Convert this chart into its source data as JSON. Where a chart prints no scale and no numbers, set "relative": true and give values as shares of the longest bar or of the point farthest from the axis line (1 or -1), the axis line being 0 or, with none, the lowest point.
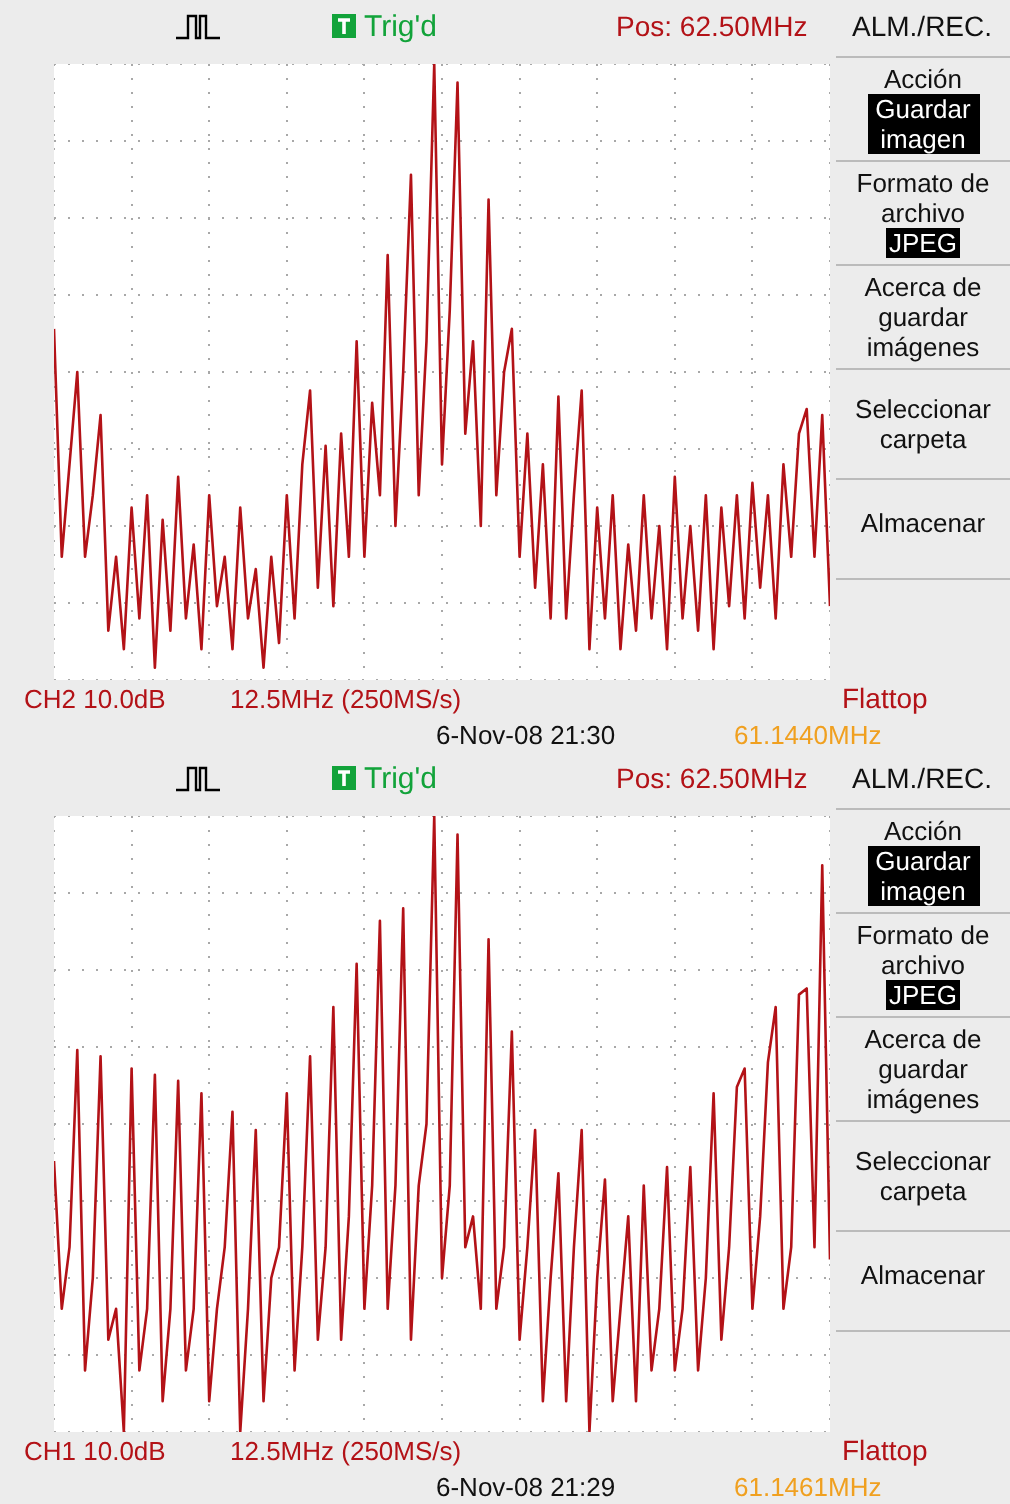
{
  "chart_data": [
    {
      "type": "line",
      "relative": true,
      "grid": true,
      "legend": false,
      "marker": "none",
      "line_style": "solid",
      "categories": [
        null,
        null,
        null,
        null,
        null,
        null,
        null,
        null,
        null,
        null,
        null,
        null,
        null,
        null,
        null,
        null,
        null,
        null,
        null,
        null,
        null,
        null,
        null,
        null,
        null,
        null,
        null,
        null,
        null,
        null,
        null,
        null,
        null,
        null,
        null,
        null,
        null,
        null,
        null,
        null,
        null,
        null,
        null,
        null,
        null,
        null,
        null,
        null,
        null,
        null,
        null,
        null,
        null,
        null,
        null,
        null,
        null,
        null,
        null,
        null,
        null,
        null,
        null,
        null,
        null,
        null,
        null,
        null,
        null,
        null,
        null,
        null,
        null,
        null,
        null,
        null,
        null,
        null,
        null,
        null,
        null,
        null,
        null,
        null,
        null,
        null,
        null,
        null,
        null,
        null,
        null,
        null,
        null,
        null,
        null,
        null,
        null,
        null,
        null,
        null,
        null
      ],
      "series": [
        {
          "color": "#b31217",
          "values": [
            0.57,
            0.2,
            0.35,
            0.5,
            0.2,
            0.3,
            0.43,
            0.08,
            0.2,
            0.05,
            0.28,
            0.1,
            0.3,
            0.02,
            0.26,
            0.08,
            0.33,
            0.1,
            0.22,
            0.05,
            0.3,
            0.12,
            0.2,
            0.05,
            0.28,
            0.1,
            0.18,
            0.02,
            0.2,
            0.06,
            0.3,
            0.1,
            0.35,
            0.47,
            0.15,
            0.38,
            0.12,
            0.4,
            0.2,
            0.55,
            0.2,
            0.45,
            0.3,
            0.69,
            0.25,
            0.5,
            0.82,
            0.3,
            0.55,
            1.0,
            0.35,
            0.6,
            0.97,
            0.4,
            0.55,
            0.25,
            0.78,
            0.3,
            0.5,
            0.57,
            0.2,
            0.4,
            0.15,
            0.35,
            0.1,
            0.46,
            0.1,
            0.3,
            0.47,
            0.05,
            0.28,
            0.1,
            0.3,
            0.05,
            0.22,
            0.08,
            0.3,
            0.1,
            0.25,
            0.05,
            0.33,
            0.1,
            0.25,
            0.08,
            0.3,
            0.05,
            0.28,
            0.12,
            0.3,
            0.1,
            0.32,
            0.15,
            0.3,
            0.1,
            0.35,
            0.2,
            0.4,
            0.44,
            0.2,
            0.43,
            0.12
          ]
        }
      ],
      "annotations": [
        "Trig'd",
        "Pos: 62.50MHz",
        "ALM./REC.",
        "Acción",
        "Guardar imagen",
        "Formato de archivo",
        "JPEG",
        "Acerca de guardar imágenes",
        "Seleccionar carpeta",
        "Almacenar",
        "CH2 10.0dB",
        "12.5MHz (250MS/s)",
        "Flattop",
        "6-Nov-08 21:30",
        "61.1440MHz"
      ]
    },
    {
      "type": "line",
      "relative": true,
      "grid": true,
      "legend": false,
      "marker": "none",
      "line_style": "solid",
      "categories": [
        null,
        null,
        null,
        null,
        null,
        null,
        null,
        null,
        null,
        null,
        null,
        null,
        null,
        null,
        null,
        null,
        null,
        null,
        null,
        null,
        null,
        null,
        null,
        null,
        null,
        null,
        null,
        null,
        null,
        null,
        null,
        null,
        null,
        null,
        null,
        null,
        null,
        null,
        null,
        null,
        null,
        null,
        null,
        null,
        null,
        null,
        null,
        null,
        null,
        null,
        null,
        null,
        null,
        null,
        null,
        null,
        null,
        null,
        null,
        null,
        null,
        null,
        null,
        null,
        null,
        null,
        null,
        null,
        null,
        null,
        null,
        null,
        null,
        null,
        null,
        null,
        null,
        null,
        null,
        null,
        null,
        null,
        null,
        null,
        null,
        null,
        null,
        null,
        null,
        null,
        null,
        null,
        null,
        null,
        null,
        null,
        null,
        null,
        null,
        null,
        null
      ],
      "series": [
        {
          "color": "#b31217",
          "values": [
            0.44,
            0.2,
            0.3,
            0.62,
            0.1,
            0.25,
            0.61,
            0.15,
            0.2,
            0.0,
            0.59,
            0.1,
            0.2,
            0.58,
            0.05,
            0.2,
            0.57,
            0.1,
            0.2,
            0.55,
            0.05,
            0.2,
            0.3,
            0.52,
            0.0,
            0.2,
            0.49,
            0.05,
            0.25,
            0.3,
            0.55,
            0.1,
            0.3,
            0.61,
            0.15,
            0.3,
            0.69,
            0.15,
            0.35,
            0.76,
            0.2,
            0.4,
            0.83,
            0.2,
            0.4,
            0.85,
            0.15,
            0.4,
            0.5,
            1.0,
            0.25,
            0.4,
            0.97,
            0.3,
            0.35,
            0.2,
            0.8,
            0.2,
            0.3,
            0.65,
            0.15,
            0.3,
            0.49,
            0.05,
            0.25,
            0.42,
            0.05,
            0.3,
            0.49,
            0.0,
            0.25,
            0.41,
            0.05,
            0.2,
            0.35,
            0.05,
            0.4,
            0.1,
            0.2,
            0.43,
            0.1,
            0.2,
            0.43,
            0.1,
            0.25,
            0.55,
            0.15,
            0.3,
            0.56,
            0.59,
            0.2,
            0.35,
            0.6,
            0.69,
            0.2,
            0.3,
            0.71,
            0.72,
            0.3,
            0.92,
            0.28
          ]
        }
      ],
      "annotations": [
        "Trig'd",
        "Pos: 62.50MHz",
        "ALM./REC.",
        "Acción",
        "Guardar imagen",
        "Formato de archivo",
        "JPEG",
        "Acerca de guardar imágenes",
        "Seleccionar carpeta",
        "Almacenar",
        "CH1 10.0dB",
        "12.5MHz (250MS/s)",
        "Flattop",
        "6-Nov-08 21:29",
        "61.1461MHz"
      ]
    }
  ]
}
